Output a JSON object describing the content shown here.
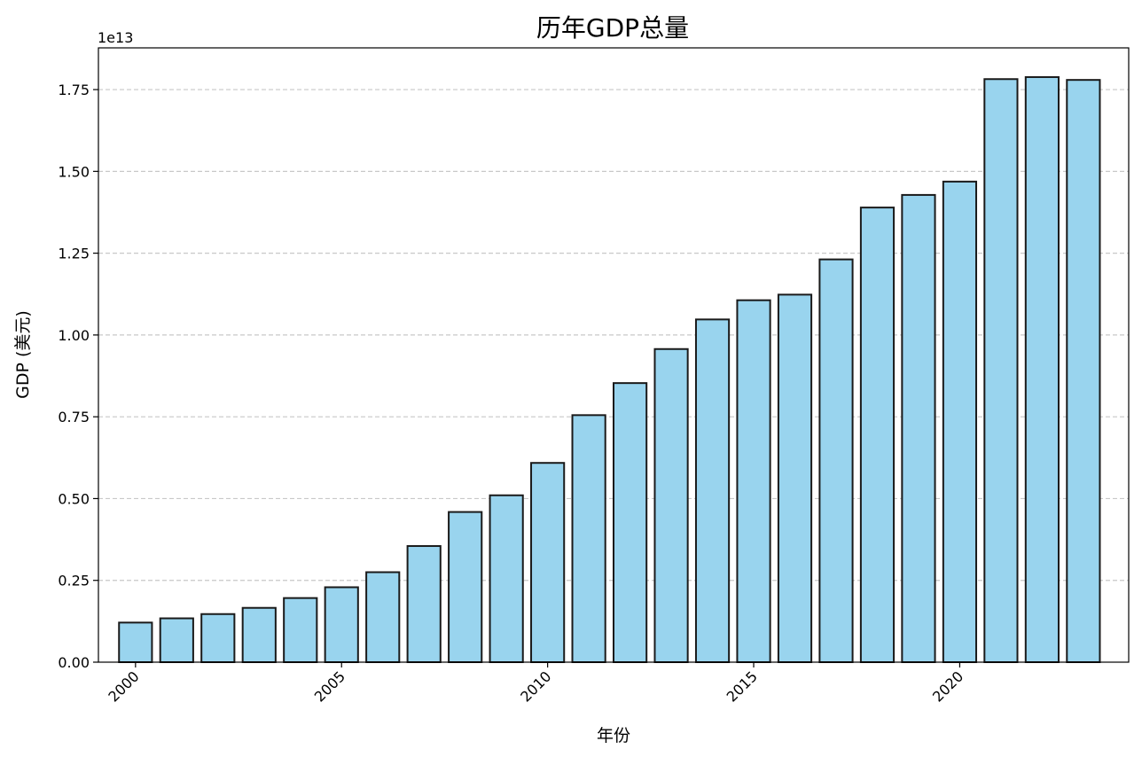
{
  "chart_data": {
    "type": "bar",
    "title": "历年GDP总量",
    "xlabel": "年份",
    "ylabel": "GDP (美元)",
    "y_offset_label": "1e13",
    "y_scale": 10000000000000,
    "x": [
      2000,
      2001,
      2002,
      2003,
      2004,
      2005,
      2006,
      2007,
      2008,
      2009,
      2010,
      2011,
      2012,
      2013,
      2014,
      2015,
      2016,
      2017,
      2018,
      2019,
      2020,
      2021,
      2022,
      2023
    ],
    "values": [
      1210000000000.0,
      1340000000000.0,
      1470000000000.0,
      1660000000000.0,
      1960000000000.0,
      2290000000000.0,
      2750000000000.0,
      3550000000000.0,
      4590000000000.0,
      5100000000000.0,
      6090000000000.0,
      7550000000000.0,
      8530000000000.0,
      9570000000000.0,
      10475000000000.0,
      11062000000000.0,
      11233000000000.0,
      12310000000000.0,
      13895000000000.0,
      14280000000000.0,
      14688000000000.0,
      17820000000000.0,
      17882000000000.0,
      17795000000000.0
    ],
    "x_ticks": [
      2000,
      2005,
      2010,
      2015,
      2020
    ],
    "x_tick_labels": [
      "2000",
      "2005",
      "2010",
      "2015",
      "2020"
    ],
    "y_ticks": [
      0.0,
      0.25,
      0.5,
      0.75,
      1.0,
      1.25,
      1.5,
      1.75
    ],
    "y_tick_labels": [
      "0.00",
      "0.25",
      "0.50",
      "0.75",
      "1.00",
      "1.25",
      "1.50",
      "1.75"
    ],
    "xlim": [
      1999.1,
      2024.1
    ],
    "ylim": [
      0,
      1.8775
    ],
    "grid": "y-dashed",
    "colors": {
      "bar_fill": "#99d4ee",
      "bar_edge": "#1a1a1a",
      "grid": "#c8c8c8",
      "axis": "#000000"
    }
  }
}
